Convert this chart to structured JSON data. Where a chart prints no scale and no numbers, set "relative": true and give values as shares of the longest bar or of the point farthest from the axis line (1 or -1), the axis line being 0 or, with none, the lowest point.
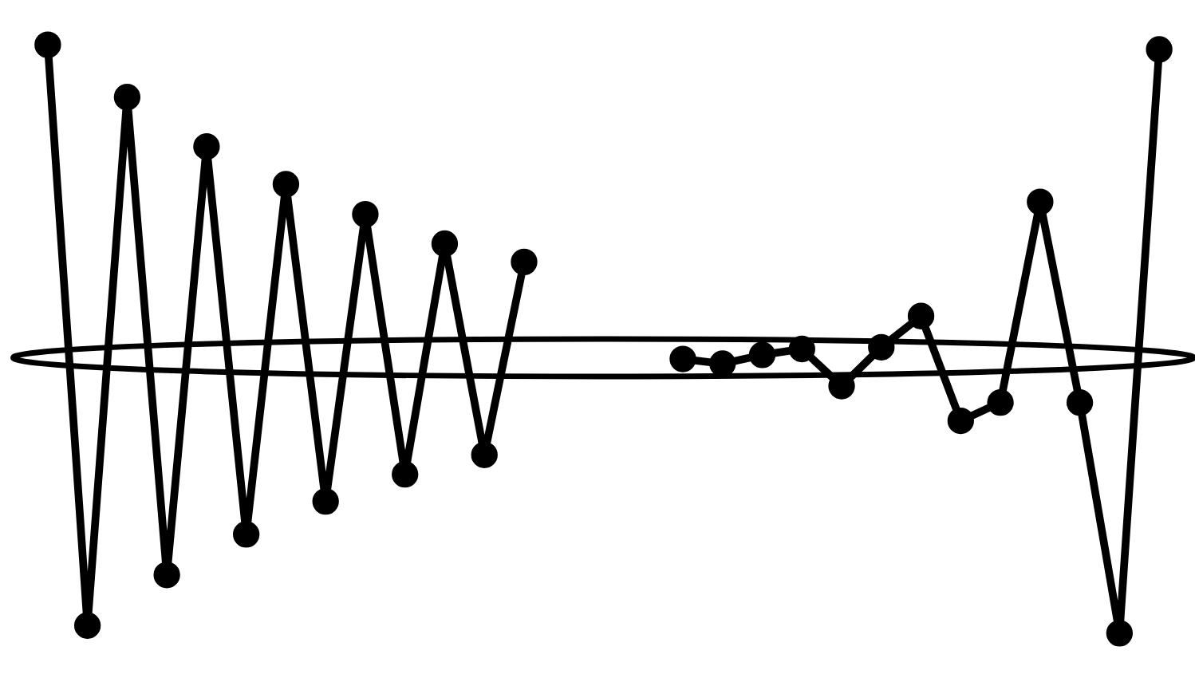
{
  "chart_data": {
    "type": "line",
    "relative": true,
    "legend": false,
    "marker": "circle",
    "line_style": "solid",
    "categories": [
      null,
      null,
      null,
      null,
      null,
      null,
      null,
      null,
      null,
      null,
      null,
      null,
      null,
      null,
      null,
      null,
      null,
      null,
      null,
      null,
      null,
      null,
      null,
      null,
      null,
      null,
      null,
      null,
      null
    ],
    "series": [
      {
        "color": "#000000",
        "values": [
          1.0,
          0.013,
          0.911,
          0.099,
          0.827,
          0.168,
          0.763,
          0.224,
          0.712,
          0.27,
          0.662,
          0.303,
          0.631,
          null,
          null,
          null,
          null,
          null,
          null,
          null,
          null,
          null,
          null,
          null,
          null,
          null,
          null,
          null,
          null
        ]
      },
      {
        "color": "#000000",
        "values": [
          null,
          null,
          null,
          null,
          null,
          null,
          null,
          null,
          null,
          null,
          null,
          null,
          null,
          null,
          null,
          null,
          0.466,
          0.458,
          0.473,
          0.483,
          0.42,
          0.486,
          0.539,
          0.361,
          0.392,
          0.733,
          0.392,
          0.0,
          0.992
        ]
      }
    ]
  }
}
